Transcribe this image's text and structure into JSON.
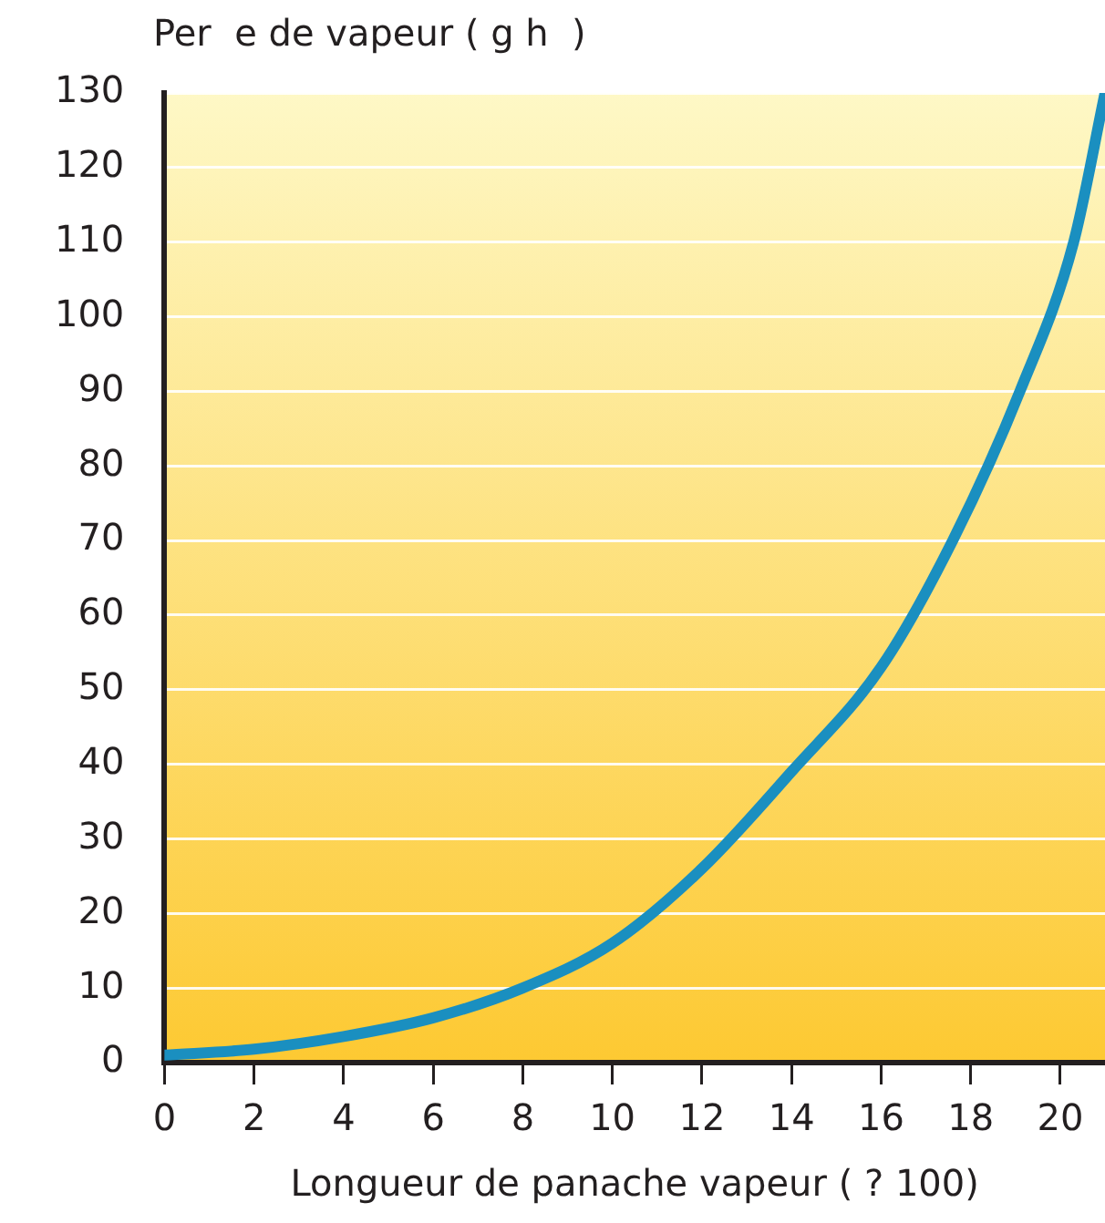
{
  "chart_data": {
    "type": "line",
    "ylabel": "Per  e de vapeur ( g h  )",
    "xlabel": "Longueur de panache vapeur ( ? 100)",
    "x": [
      0,
      2,
      4,
      6,
      8,
      10,
      12,
      14,
      16,
      17.6,
      19.1,
      20.3,
      21
    ],
    "series": [
      {
        "color": "#1a8fc0",
        "values": [
          1,
          1.8,
          3.5,
          6,
          10,
          16,
          26,
          39,
          53,
          70,
          90,
          110,
          130
        ]
      }
    ],
    "xlim": [
      0,
      21
    ],
    "xticks": [
      0,
      2,
      4,
      6,
      8,
      10,
      12,
      14,
      16,
      18,
      20
    ],
    "ylim": [
      0,
      130
    ],
    "yticks": [
      0,
      10,
      20,
      30,
      40,
      50,
      60,
      70,
      80,
      90,
      100,
      110,
      120,
      130
    ],
    "grid": "y",
    "legend": false,
    "marker": "none",
    "line_style": "solid"
  }
}
